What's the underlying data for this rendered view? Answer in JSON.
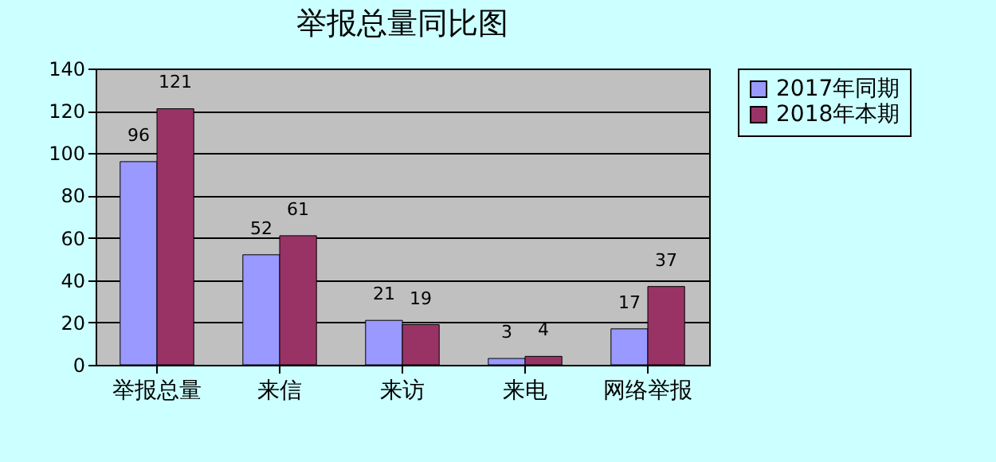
{
  "chart_data": {
    "type": "bar",
    "title": "举报总量同比图",
    "categories": [
      "举报总量",
      "来信",
      "来访",
      "来电",
      "网络举报"
    ],
    "series": [
      {
        "name": "2017年同期",
        "color": "#9999ff",
        "values": [
          96,
          52,
          21,
          3,
          17
        ]
      },
      {
        "name": "2018年本期",
        "color": "#993366",
        "values": [
          121,
          61,
          19,
          4,
          37
        ]
      }
    ],
    "ylim": [
      0,
      140
    ],
    "yticks": [
      0,
      20,
      40,
      60,
      80,
      100,
      120,
      140
    ],
    "grid": "y",
    "legend": "right",
    "data_labels": true
  }
}
